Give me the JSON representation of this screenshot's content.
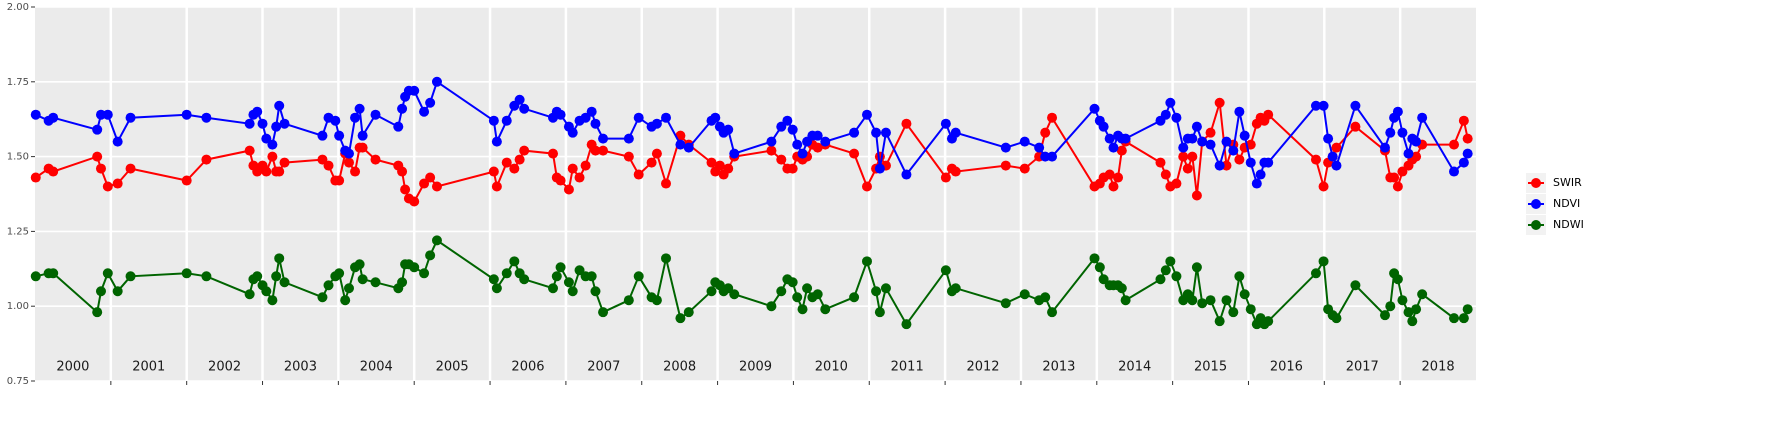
{
  "chart_data": {
    "type": "line",
    "xlim": [
      2000,
      2019
    ],
    "ylim": [
      0.75,
      2.0
    ],
    "yticks": [
      0.75,
      {
        "value": 1.0,
        "label": "1.00"
      },
      1.25,
      {
        "value": 1.5,
        "label": "1.50"
      },
      1.75,
      {
        "value": 2.0,
        "label": "2.00"
      }
    ],
    "grid": true,
    "legend": "right",
    "panels": [
      2000,
      2001,
      2002,
      2003,
      2004,
      2005,
      2006,
      2007,
      2008,
      2009,
      2010,
      2011,
      2012,
      2013,
      2014,
      2015,
      2016,
      2017,
      2018
    ],
    "x": [
      2000.01,
      2000.18,
      2000.24,
      2000.82,
      2000.87,
      2000.96,
      2001.09,
      2001.26,
      2002.0,
      2002.26,
      2002.83,
      2002.88,
      2002.93,
      2003.0,
      2003.05,
      2003.13,
      2003.18,
      2003.22,
      2003.29,
      2003.79,
      2003.87,
      2003.96,
      2004.01,
      2004.09,
      2004.14,
      2004.22,
      2004.28,
      2004.32,
      2004.49,
      2004.79,
      2004.84,
      2004.88,
      2004.93,
      2005.0,
      2005.13,
      2005.21,
      2005.3,
      2006.05,
      2006.09,
      2006.22,
      2006.32,
      2006.39,
      2006.45,
      2006.83,
      2006.88,
      2006.93,
      2007.04,
      2007.09,
      2007.18,
      2007.26,
      2007.34,
      2007.39,
      2007.49,
      2007.83,
      2007.96,
      2008.13,
      2008.2,
      2008.32,
      2008.51,
      2008.62,
      2008.92,
      2008.97,
      2009.03,
      2009.08,
      2009.14,
      2009.22,
      2009.71,
      2009.84,
      2009.92,
      2009.99,
      2010.05,
      2010.12,
      2010.18,
      2010.25,
      2010.32,
      2010.42,
      2010.8,
      2010.97,
      2011.09,
      2011.14,
      2011.22,
      2011.49,
      2012.01,
      2012.09,
      2012.14,
      2012.8,
      2013.05,
      2013.24,
      2013.32,
      2013.41,
      2013.97,
      2014.04,
      2014.09,
      2014.17,
      2014.22,
      2014.28,
      2014.33,
      2014.38,
      2014.84,
      2014.91,
      2014.97,
      2015.05,
      2015.14,
      2015.2,
      2015.26,
      2015.32,
      2015.39,
      2015.5,
      2015.62,
      2015.71,
      2015.8,
      2015.88,
      2015.95,
      2016.03,
      2016.11,
      2016.16,
      2016.21,
      2016.26,
      2016.89,
      2016.99,
      2017.05,
      2017.11,
      2017.16,
      2017.41,
      2017.8,
      2017.87,
      2017.92,
      2017.97,
      2018.03,
      2018.11,
      2018.16,
      2018.21,
      2018.29,
      2018.71,
      2018.84,
      2018.89
    ],
    "series": [
      {
        "name": "SWIR",
        "color": "#ff0000",
        "values": [
          1.43,
          1.46,
          1.45,
          1.5,
          1.46,
          1.4,
          1.41,
          1.46,
          1.42,
          1.49,
          1.52,
          1.47,
          1.45,
          1.47,
          1.45,
          1.5,
          1.45,
          1.45,
          1.48,
          1.49,
          1.47,
          1.42,
          1.42,
          1.51,
          1.48,
          1.45,
          1.53,
          1.53,
          1.49,
          1.47,
          1.45,
          1.39,
          1.36,
          1.35,
          1.41,
          1.43,
          1.4,
          1.45,
          1.4,
          1.48,
          1.46,
          1.49,
          1.52,
          1.51,
          1.43,
          1.42,
          1.39,
          1.46,
          1.43,
          1.47,
          1.54,
          1.52,
          1.52,
          1.5,
          1.44,
          1.48,
          1.51,
          1.41,
          1.57,
          1.54,
          1.48,
          1.45,
          1.47,
          1.44,
          1.46,
          1.5,
          1.52,
          1.49,
          1.46,
          1.46,
          1.5,
          1.49,
          1.5,
          1.54,
          1.53,
          1.54,
          1.51,
          1.4,
          1.46,
          1.5,
          1.47,
          1.61,
          1.43,
          1.46,
          1.45,
          1.47,
          1.46,
          1.5,
          1.58,
          1.63,
          1.4,
          1.41,
          1.43,
          1.44,
          1.4,
          1.43,
          1.52,
          1.55,
          1.48,
          1.44,
          1.4,
          1.41,
          1.5,
          1.46,
          1.5,
          1.37,
          1.55,
          1.58,
          1.68,
          1.47,
          1.54,
          1.49,
          1.53,
          1.54,
          1.61,
          1.63,
          1.62,
          1.64,
          1.49,
          1.4,
          1.48,
          1.5,
          1.53,
          1.6,
          1.52,
          1.43,
          1.43,
          1.4,
          1.45,
          1.47,
          1.49,
          1.5,
          1.54,
          1.54,
          1.62,
          1.56
        ]
      },
      {
        "name": "NDVI",
        "color": "#0000ff",
        "values": [
          1.64,
          1.62,
          1.63,
          1.59,
          1.64,
          1.64,
          1.55,
          1.63,
          1.64,
          1.63,
          1.61,
          1.64,
          1.65,
          1.61,
          1.56,
          1.54,
          1.6,
          1.67,
          1.61,
          1.57,
          1.63,
          1.62,
          1.57,
          1.52,
          1.51,
          1.63,
          1.66,
          1.57,
          1.64,
          1.6,
          1.66,
          1.7,
          1.72,
          1.72,
          1.65,
          1.68,
          1.75,
          1.62,
          1.55,
          1.62,
          1.67,
          1.69,
          1.66,
          1.63,
          1.65,
          1.64,
          1.6,
          1.58,
          1.62,
          1.63,
          1.65,
          1.61,
          1.56,
          1.56,
          1.63,
          1.6,
          1.61,
          1.63,
          1.54,
          1.53,
          1.62,
          1.63,
          1.6,
          1.58,
          1.59,
          1.51,
          1.55,
          1.6,
          1.62,
          1.59,
          1.54,
          1.51,
          1.55,
          1.57,
          1.57,
          1.55,
          1.58,
          1.64,
          1.58,
          1.46,
          1.58,
          1.44,
          1.61,
          1.56,
          1.58,
          1.53,
          1.55,
          1.53,
          1.5,
          1.5,
          1.66,
          1.62,
          1.6,
          1.56,
          1.53,
          1.57,
          1.56,
          1.56,
          1.62,
          1.64,
          1.68,
          1.63,
          1.53,
          1.56,
          1.56,
          1.6,
          1.55,
          1.54,
          1.47,
          1.55,
          1.52,
          1.65,
          1.57,
          1.48,
          1.41,
          1.44,
          1.48,
          1.48,
          1.67,
          1.67,
          1.56,
          1.5,
          1.47,
          1.67,
          1.53,
          1.58,
          1.63,
          1.65,
          1.58,
          1.51,
          1.56,
          1.55,
          1.63,
          1.45,
          1.48,
          1.51
        ]
      },
      {
        "name": "NDWI",
        "color": "#006400",
        "values": [
          1.1,
          1.11,
          1.11,
          0.98,
          1.05,
          1.11,
          1.05,
          1.1,
          1.11,
          1.1,
          1.04,
          1.09,
          1.1,
          1.07,
          1.05,
          1.02,
          1.1,
          1.16,
          1.08,
          1.03,
          1.07,
          1.1,
          1.11,
          1.02,
          1.06,
          1.13,
          1.14,
          1.09,
          1.08,
          1.06,
          1.08,
          1.14,
          1.14,
          1.13,
          1.11,
          1.17,
          1.22,
          1.09,
          1.06,
          1.11,
          1.15,
          1.11,
          1.09,
          1.06,
          1.1,
          1.13,
          1.08,
          1.05,
          1.12,
          1.1,
          1.1,
          1.05,
          0.98,
          1.02,
          1.1,
          1.03,
          1.02,
          1.16,
          0.96,
          0.98,
          1.05,
          1.08,
          1.07,
          1.05,
          1.06,
          1.04,
          1.0,
          1.05,
          1.09,
          1.08,
          1.03,
          0.99,
          1.06,
          1.03,
          1.04,
          0.99,
          1.03,
          1.15,
          1.05,
          0.98,
          1.06,
          0.94,
          1.12,
          1.05,
          1.06,
          1.01,
          1.04,
          1.02,
          1.03,
          0.98,
          1.16,
          1.13,
          1.09,
          1.07,
          1.07,
          1.07,
          1.06,
          1.02,
          1.09,
          1.12,
          1.15,
          1.1,
          1.02,
          1.04,
          1.02,
          1.13,
          1.01,
          1.02,
          0.95,
          1.02,
          0.98,
          1.1,
          1.04,
          0.99,
          0.94,
          0.96,
          0.94,
          0.95,
          1.11,
          1.15,
          0.99,
          0.97,
          0.96,
          1.07,
          0.97,
          1.0,
          1.11,
          1.09,
          1.02,
          0.98,
          0.95,
          0.99,
          1.04,
          0.96,
          0.96,
          0.99
        ]
      }
    ]
  }
}
